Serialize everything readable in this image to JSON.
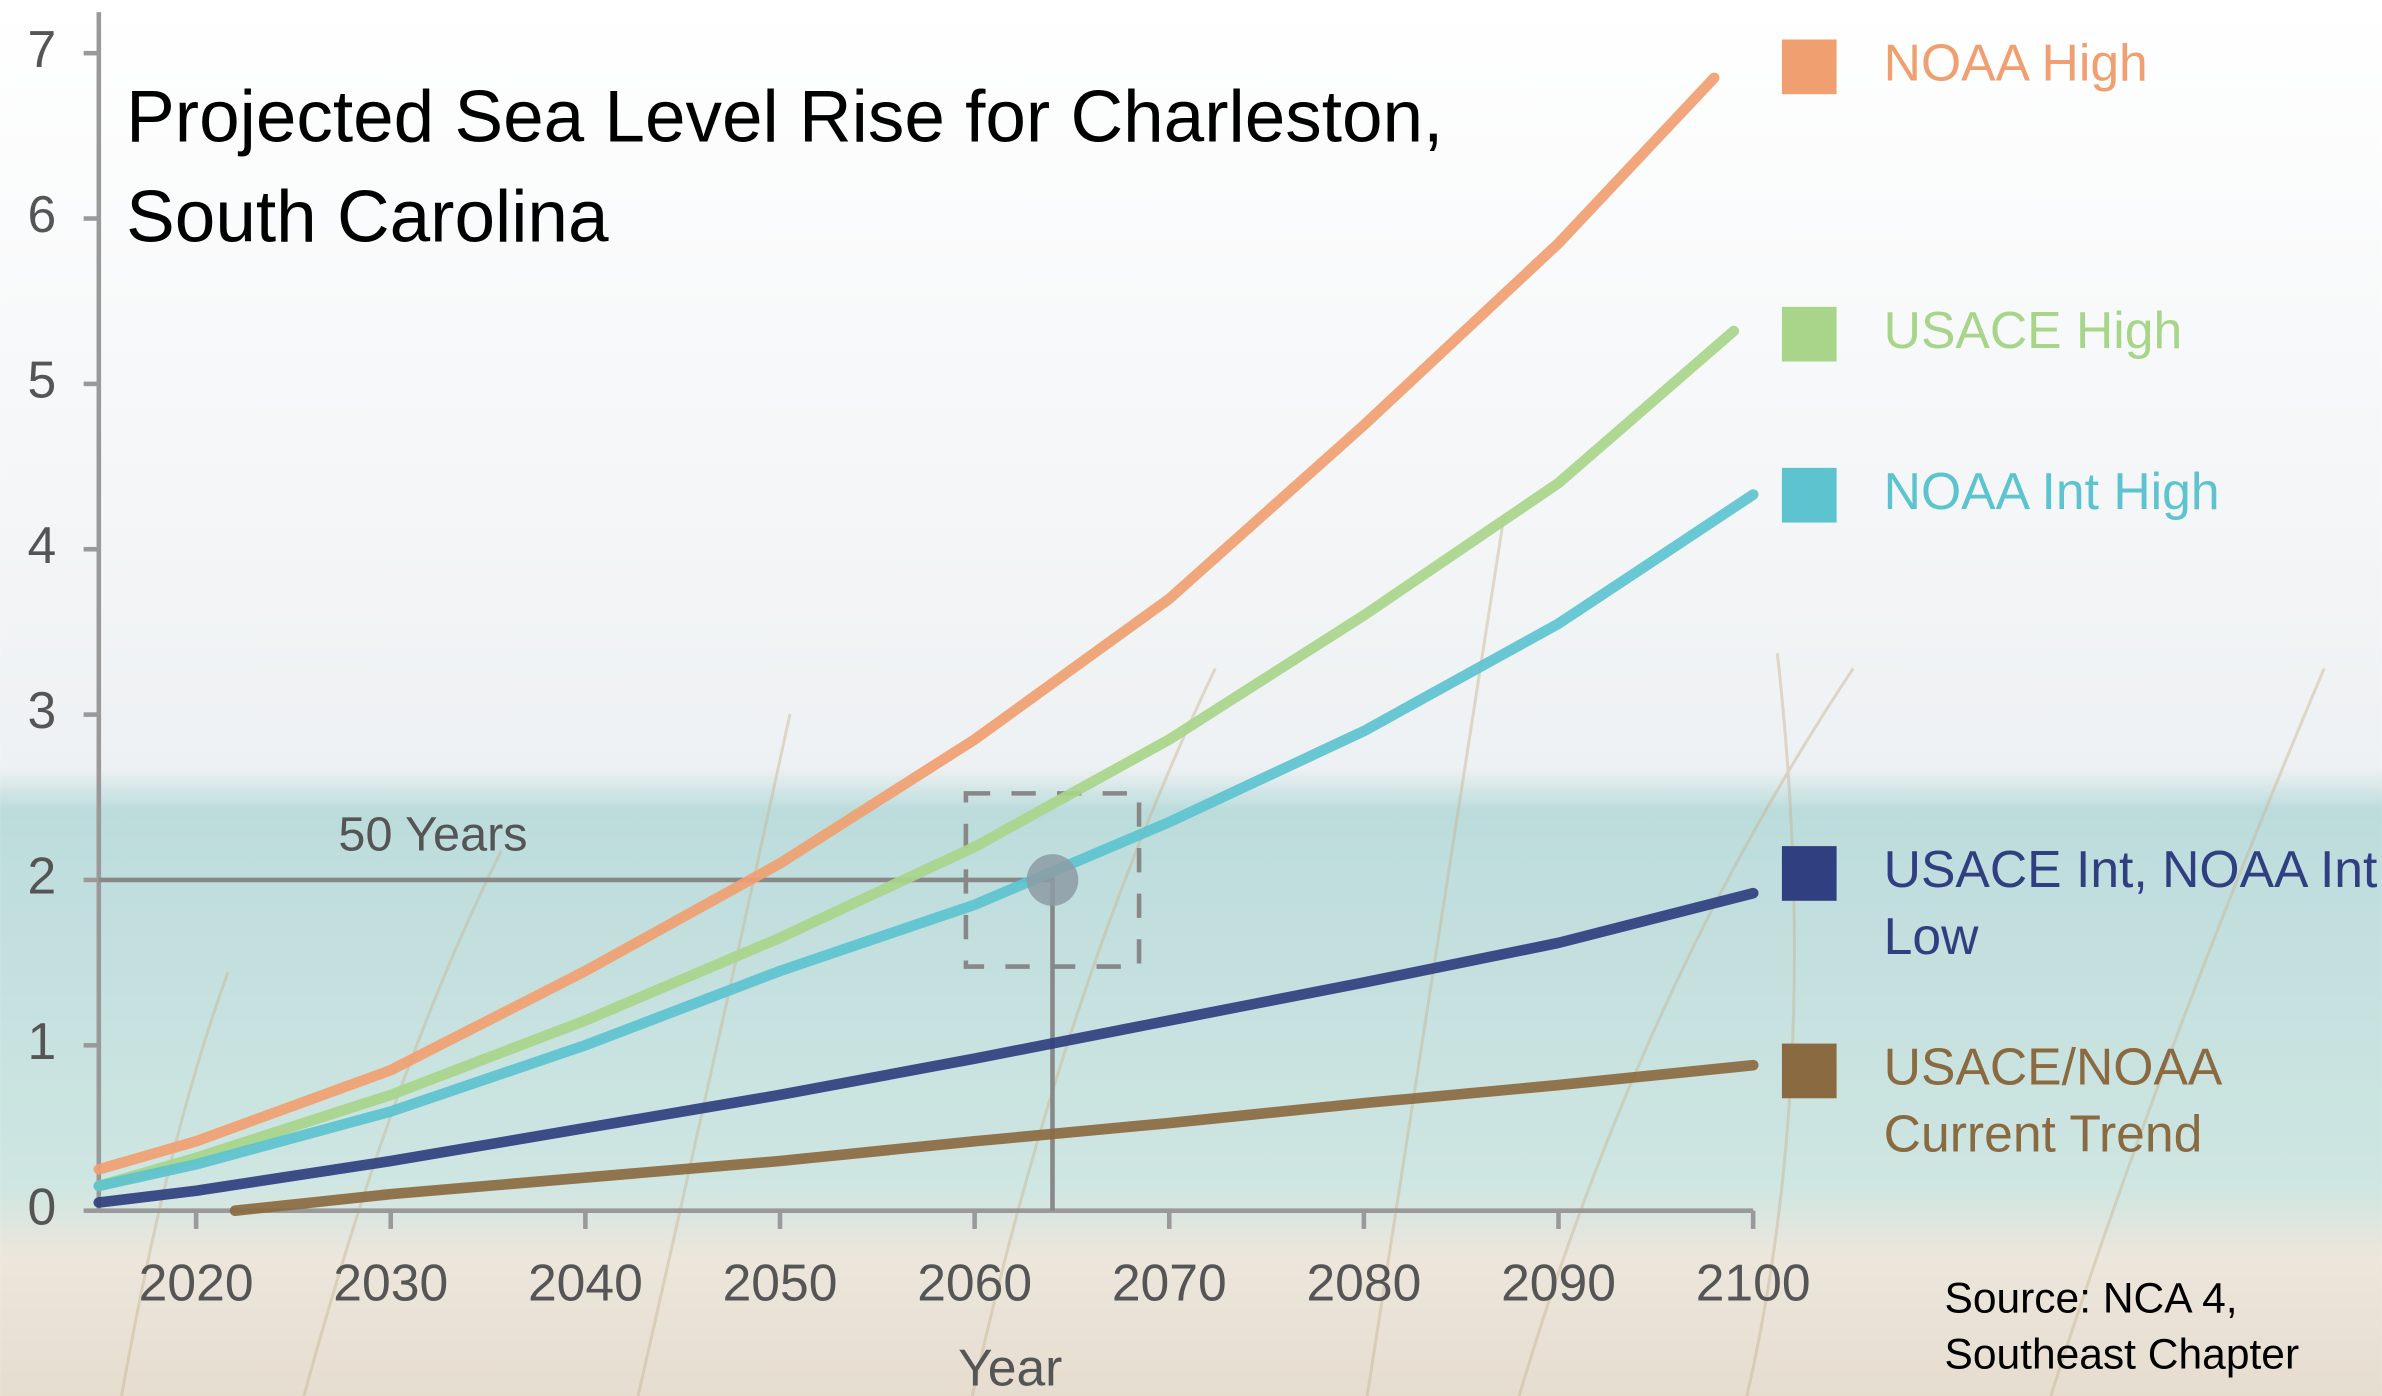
{
  "chart_data": {
    "type": "line",
    "title": "Projected Sea Level Rise for Charleston, South Carolina",
    "x_label": "Year",
    "xlim": [
      2015,
      2100
    ],
    "xticks": [
      2020,
      2030,
      2040,
      2050,
      2060,
      2070,
      2080,
      2090,
      2100
    ],
    "ylim": [
      0,
      7
    ],
    "yticks": [
      0,
      1,
      2,
      3,
      4,
      5,
      6,
      7
    ],
    "grid": false,
    "legend": "right",
    "series": [
      {
        "name": "NOAA High",
        "color": "#f0a070",
        "x": [
          2015,
          2020,
          2030,
          2040,
          2050,
          2060,
          2070,
          2080,
          2090,
          2098
        ],
        "values": [
          0.25,
          0.42,
          0.85,
          1.45,
          2.1,
          2.85,
          3.7,
          4.75,
          5.85,
          6.85
        ]
      },
      {
        "name": "USACE High",
        "color": "#a8d58a",
        "x": [
          2015,
          2020,
          2030,
          2040,
          2050,
          2060,
          2070,
          2080,
          2090,
          2099
        ],
        "values": [
          0.15,
          0.32,
          0.7,
          1.15,
          1.65,
          2.2,
          2.85,
          3.6,
          4.4,
          5.32
        ]
      },
      {
        "name": "NOAA Int High",
        "color": "#5cc3cf",
        "x": [
          2015,
          2020,
          2030,
          2040,
          2050,
          2060,
          2070,
          2080,
          2090,
          2100
        ],
        "values": [
          0.15,
          0.28,
          0.6,
          1.0,
          1.45,
          1.85,
          2.35,
          2.9,
          3.55,
          4.33
        ]
      },
      {
        "name": "USACE Int, NOAA Int Low",
        "color": "#2f3f7f",
        "x": [
          2015,
          2020,
          2030,
          2040,
          2050,
          2060,
          2070,
          2080,
          2090,
          2100
        ],
        "values": [
          0.05,
          0.12,
          0.3,
          0.5,
          0.7,
          0.92,
          1.15,
          1.38,
          1.62,
          1.92
        ]
      },
      {
        "name": "USACE/NOAA Current Trend",
        "color": "#8a6a40",
        "x": [
          2022,
          2030,
          2040,
          2050,
          2060,
          2070,
          2080,
          2090,
          2100
        ],
        "values": [
          0,
          0.1,
          0.2,
          0.3,
          0.42,
          0.53,
          0.65,
          0.76,
          0.88
        ]
      }
    ],
    "annotation": {
      "text": "50 Years",
      "x": 2064,
      "y": 2
    },
    "source": "Source: NCA 4, Southeast Chapter"
  }
}
